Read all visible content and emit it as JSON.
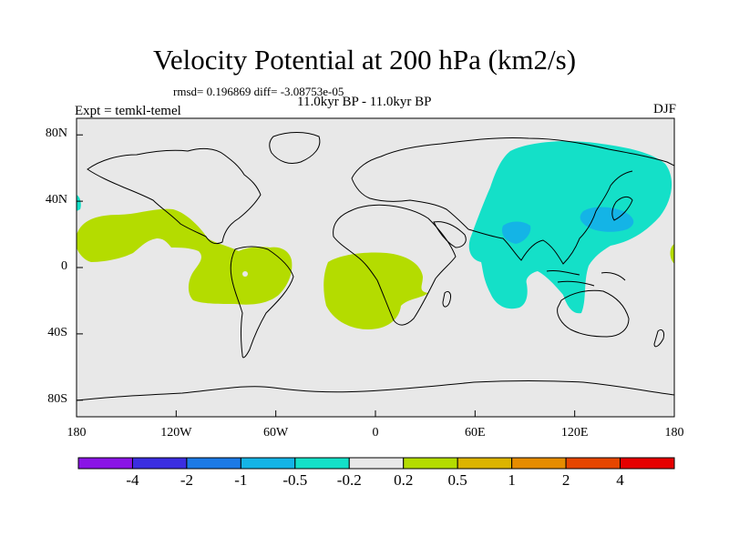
{
  "header": {
    "title": "Velocity Potential at 200 hPa (km2/s)",
    "stats": "rmsd= 0.196869  diff= -3.08753e-05",
    "period": "11.0kyr BP - 11.0kyr BP",
    "experiment": "Expt = temkl-temel",
    "season": "DJF"
  },
  "map": {
    "background_color": "#e8e8e8",
    "projection": "cylindrical-equidistant",
    "lon_range": [
      -180,
      180
    ],
    "lat_range": [
      -90,
      90
    ],
    "lat_ticks": [
      {
        "lat": 80,
        "label": "80N"
      },
      {
        "lat": 40,
        "label": "40N"
      },
      {
        "lat": 0,
        "label": "0"
      },
      {
        "lat": -40,
        "label": "40S"
      },
      {
        "lat": -80,
        "label": "80S"
      }
    ],
    "lon_ticks": [
      {
        "lon": -180,
        "label": "180"
      },
      {
        "lon": -120,
        "label": "120W"
      },
      {
        "lon": -60,
        "label": "60W"
      },
      {
        "lon": 0,
        "label": "0"
      },
      {
        "lon": 60,
        "label": "60E"
      },
      {
        "lon": 120,
        "label": "120E"
      },
      {
        "lon": 180,
        "label": "180"
      }
    ]
  },
  "colorbar": {
    "colors": [
      "#8a14e6",
      "#3b2ee0",
      "#1c7ae6",
      "#14b4e6",
      "#14e0c8",
      "#e8e8e8",
      "#b4dc00",
      "#dcb400",
      "#e68c00",
      "#e64600",
      "#e60000"
    ],
    "labels": [
      "-4",
      "-2",
      "-1",
      "-0.5",
      "-0.2",
      "0.2",
      "0.5",
      "1",
      "2",
      "4"
    ]
  }
}
